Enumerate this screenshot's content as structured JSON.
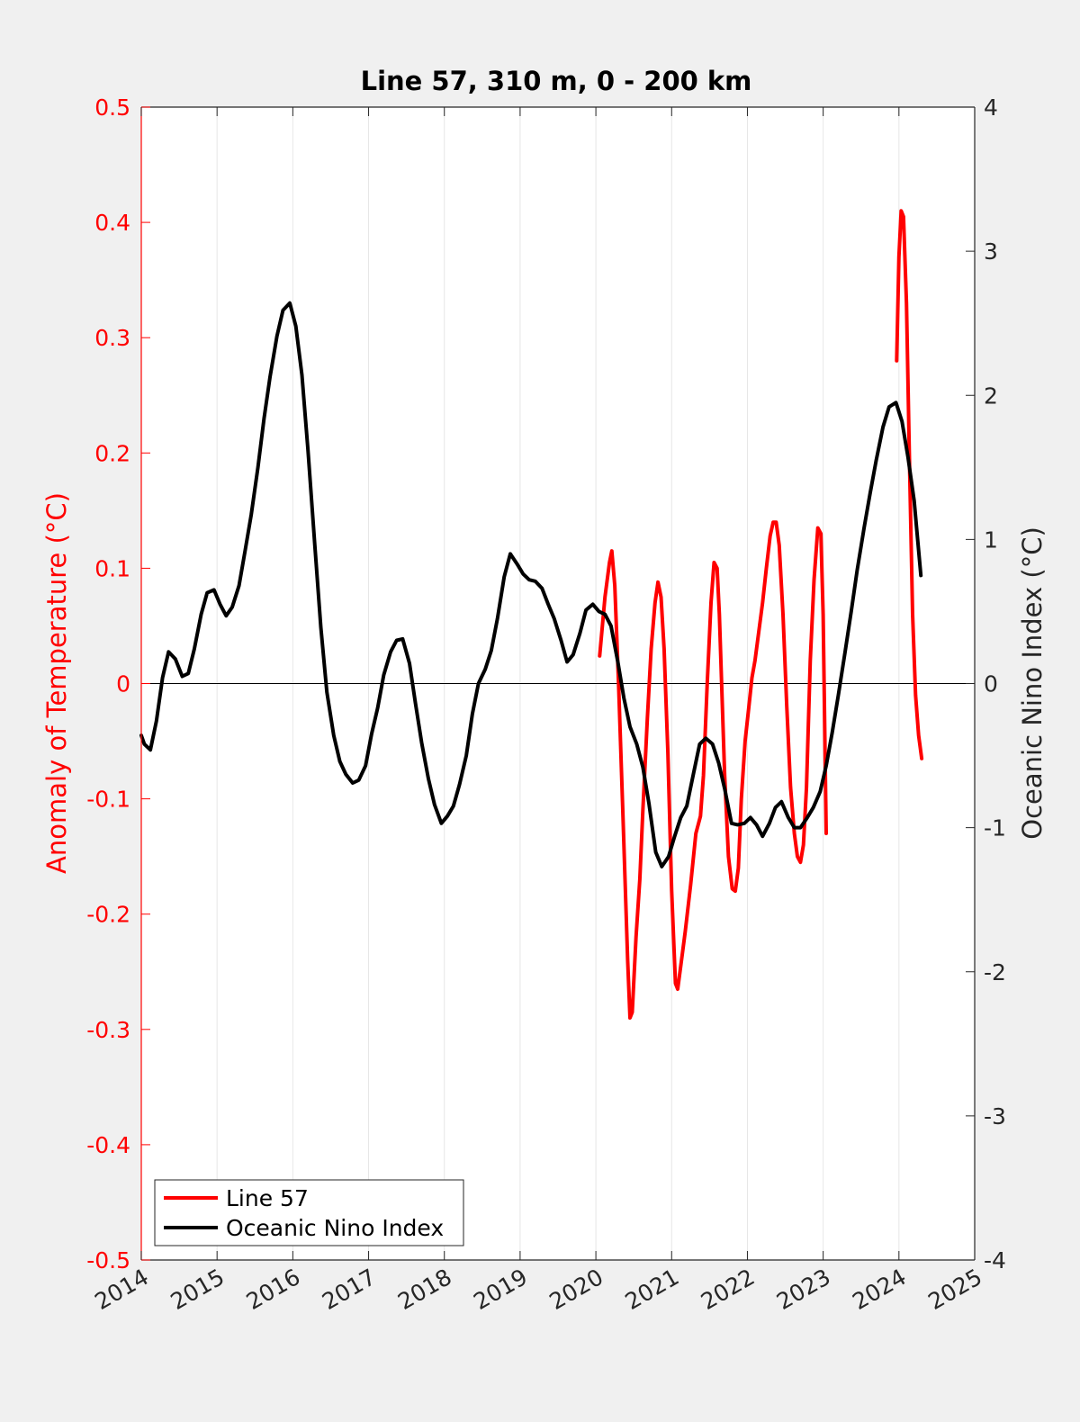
{
  "chart_data": {
    "type": "line",
    "title": "Line 57, 310 m, 0 - 200 km",
    "xlim": [
      2014,
      2025
    ],
    "x_ticks": [
      "2014",
      "2015",
      "2016",
      "2017",
      "2018",
      "2019",
      "2020",
      "2021",
      "2022",
      "2023",
      "2024",
      "2025"
    ],
    "left_axis": {
      "label": "Anomaly of Temperature (°C)",
      "ylim": [
        -0.5,
        0.5
      ],
      "ticks": [
        "0.5",
        "0.4",
        "0.3",
        "0.2",
        "0.1",
        "0",
        "-0.1",
        "-0.2",
        "-0.3",
        "-0.4",
        "-0.5"
      ],
      "color": "#ff0000"
    },
    "right_axis": {
      "label": "Oceanic Nino Index (°C)",
      "ylim": [
        -4,
        4
      ],
      "ticks": [
        "4",
        "3",
        "2",
        "1",
        "0",
        "-1",
        "-2",
        "-3",
        "-4"
      ],
      "color": "#262626"
    },
    "grid": "vertical",
    "zero_line": true,
    "legend_position": "bottom-left",
    "series": [
      {
        "name": "Line 57",
        "axis": "left",
        "color": "#ff0000",
        "segments": [
          {
            "x": [
              2020.05,
              2020.12,
              2020.18,
              2020.21,
              2020.25,
              2020.3,
              2020.36,
              2020.42,
              2020.45,
              2020.48,
              2020.53,
              2020.58,
              2020.62,
              2020.68,
              2020.73,
              2020.78,
              2020.82,
              2020.86,
              2020.9,
              2020.95,
              2021.0,
              2021.05,
              2021.08,
              2021.12,
              2021.18,
              2021.25,
              2021.32,
              2021.38,
              2021.42,
              2021.47,
              2021.52,
              2021.56,
              2021.6,
              2021.63,
              2021.66,
              2021.7,
              2021.75,
              2021.8,
              2021.84,
              2021.88,
              2021.92,
              2021.97,
              2022.02,
              2022.06,
              2022.1,
              2022.15,
              2022.2,
              2022.25,
              2022.3,
              2022.34,
              2022.38,
              2022.42,
              2022.47,
              2022.52,
              2022.57,
              2022.62,
              2022.66,
              2022.7,
              2022.74,
              2022.78,
              2022.83,
              2022.88,
              2022.93,
              2022.97,
              2023.0,
              2023.04
            ],
            "y": [
              0.024,
              0.075,
              0.105,
              0.115,
              0.085,
              0.0,
              -0.12,
              -0.24,
              -0.29,
              -0.285,
              -0.22,
              -0.17,
              -0.11,
              -0.03,
              0.03,
              0.07,
              0.088,
              0.075,
              0.03,
              -0.06,
              -0.18,
              -0.26,
              -0.265,
              -0.245,
              -0.215,
              -0.175,
              -0.13,
              -0.115,
              -0.08,
              0.0,
              0.07,
              0.105,
              0.1,
              0.06,
              0.0,
              -0.08,
              -0.15,
              -0.178,
              -0.18,
              -0.16,
              -0.1,
              -0.05,
              -0.02,
              0.005,
              0.02,
              0.045,
              0.07,
              0.1,
              0.128,
              0.14,
              0.14,
              0.12,
              0.06,
              -0.02,
              -0.09,
              -0.13,
              -0.15,
              -0.155,
              -0.14,
              -0.09,
              0.02,
              0.09,
              0.135,
              0.13,
              0.06,
              -0.13
            ]
          },
          {
            "x": [
              2023.97,
              2024.0,
              2024.03,
              2024.06,
              2024.1,
              2024.14,
              2024.18,
              2024.22,
              2024.26,
              2024.3
            ],
            "y": [
              0.28,
              0.37,
              0.41,
              0.405,
              0.33,
              0.19,
              0.06,
              -0.01,
              -0.045,
              -0.065
            ]
          }
        ]
      },
      {
        "name": "Oceanic Nino Index",
        "axis": "right",
        "color": "#000000",
        "x": [
          2014.0,
          2014.04,
          2014.12,
          2014.2,
          2014.28,
          2014.36,
          2014.45,
          2014.54,
          2014.62,
          2014.7,
          2014.79,
          2014.87,
          2014.96,
          2015.04,
          2015.12,
          2015.2,
          2015.29,
          2015.37,
          2015.45,
          2015.54,
          2015.62,
          2015.7,
          2015.79,
          2015.87,
          2015.96,
          2016.04,
          2016.12,
          2016.2,
          2016.29,
          2016.37,
          2016.45,
          2016.54,
          2016.62,
          2016.7,
          2016.79,
          2016.87,
          2016.96,
          2017.04,
          2017.12,
          2017.2,
          2017.29,
          2017.37,
          2017.45,
          2017.54,
          2017.62,
          2017.7,
          2017.79,
          2017.87,
          2017.96,
          2018.04,
          2018.12,
          2018.2,
          2018.29,
          2018.37,
          2018.45,
          2018.54,
          2018.62,
          2018.7,
          2018.79,
          2018.87,
          2018.96,
          2019.04,
          2019.12,
          2019.2,
          2019.29,
          2019.37,
          2019.45,
          2019.54,
          2019.62,
          2019.7,
          2019.79,
          2019.87,
          2019.96,
          2020.04,
          2020.12,
          2020.2,
          2020.29,
          2020.37,
          2020.45,
          2020.54,
          2020.62,
          2020.7,
          2020.79,
          2020.87,
          2020.96,
          2021.04,
          2021.12,
          2021.2,
          2021.29,
          2021.37,
          2021.45,
          2021.54,
          2021.62,
          2021.7,
          2021.79,
          2021.87,
          2021.96,
          2022.04,
          2022.12,
          2022.2,
          2022.29,
          2022.37,
          2022.45,
          2022.54,
          2022.62,
          2022.7,
          2022.79,
          2022.87,
          2022.96,
          2023.04,
          2023.12,
          2023.2,
          2023.29,
          2023.37,
          2023.45,
          2023.54,
          2023.62,
          2023.7,
          2023.79,
          2023.87,
          2023.96,
          2024.04,
          2024.12,
          2024.2,
          2024.29
        ],
        "y": [
          -0.36,
          -0.42,
          -0.46,
          -0.26,
          0.04,
          0.22,
          0.17,
          0.05,
          0.07,
          0.24,
          0.48,
          0.63,
          0.65,
          0.55,
          0.47,
          0.53,
          0.68,
          0.92,
          1.17,
          1.5,
          1.84,
          2.13,
          2.41,
          2.59,
          2.64,
          2.48,
          2.14,
          1.62,
          0.96,
          0.39,
          -0.06,
          -0.36,
          -0.54,
          -0.63,
          -0.69,
          -0.67,
          -0.57,
          -0.35,
          -0.17,
          0.06,
          0.22,
          0.3,
          0.31,
          0.14,
          -0.14,
          -0.41,
          -0.66,
          -0.84,
          -0.97,
          -0.92,
          -0.85,
          -0.7,
          -0.5,
          -0.21,
          0.0,
          0.1,
          0.23,
          0.45,
          0.74,
          0.9,
          0.83,
          0.76,
          0.72,
          0.71,
          0.66,
          0.55,
          0.45,
          0.3,
          0.15,
          0.2,
          0.35,
          0.51,
          0.55,
          0.5,
          0.48,
          0.4,
          0.15,
          -0.1,
          -0.3,
          -0.42,
          -0.58,
          -0.83,
          -1.17,
          -1.27,
          -1.2,
          -1.06,
          -0.93,
          -0.85,
          -0.62,
          -0.42,
          -0.38,
          -0.42,
          -0.55,
          -0.73,
          -0.97,
          -0.98,
          -0.97,
          -0.93,
          -0.98,
          -1.06,
          -0.97,
          -0.86,
          -0.82,
          -0.93,
          -1.0,
          -1.0,
          -0.93,
          -0.86,
          -0.75,
          -0.57,
          -0.34,
          -0.08,
          0.22,
          0.5,
          0.79,
          1.08,
          1.32,
          1.55,
          1.78,
          1.92,
          1.95,
          1.82,
          1.57,
          1.27,
          0.75
        ]
      }
    ]
  }
}
